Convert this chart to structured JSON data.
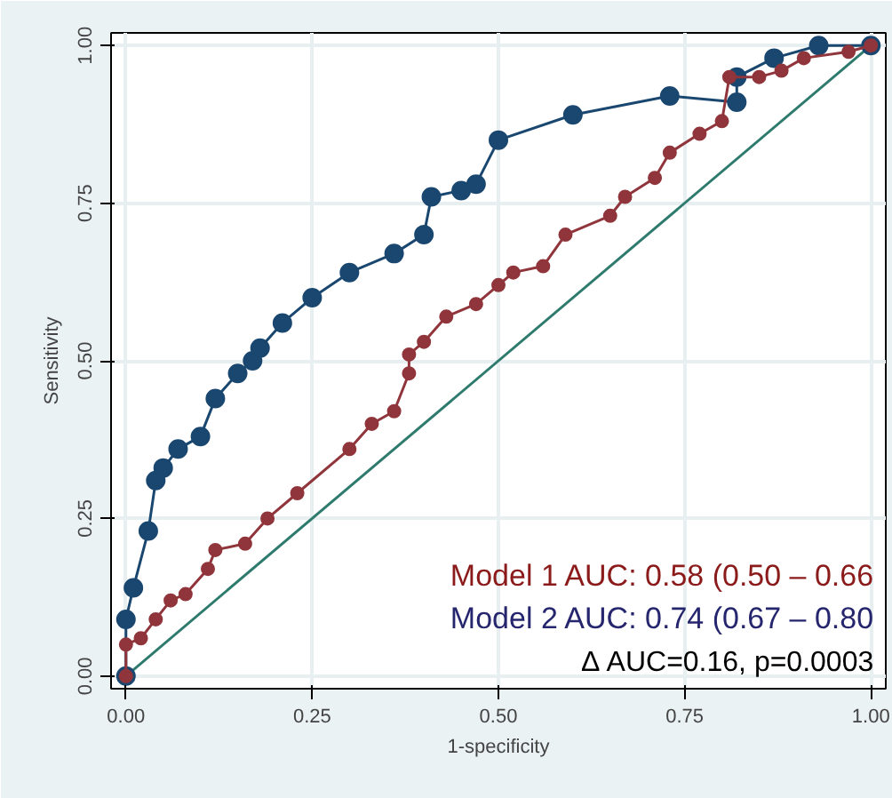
{
  "chart_data": {
    "type": "line",
    "xlabel": "1-specificity",
    "ylabel": "Sensitivity",
    "xlim": [
      -0.02,
      1.02
    ],
    "ylim": [
      -0.02,
      1.02
    ],
    "xticks": [
      {
        "value": 0,
        "label": "0.00"
      },
      {
        "value": 0.25,
        "label": "0.25"
      },
      {
        "value": 0.5,
        "label": "0.50"
      },
      {
        "value": 0.75,
        "label": "0.75"
      },
      {
        "value": 1,
        "label": "1.00"
      }
    ],
    "yticks": [
      {
        "value": 0,
        "label": "0.00"
      },
      {
        "value": 0.25,
        "label": "0.25"
      },
      {
        "value": 0.5,
        "label": "0.50"
      },
      {
        "value": 0.75,
        "label": "0.75"
      },
      {
        "value": 1,
        "label": "1.00"
      }
    ],
    "grid": true,
    "series": [
      {
        "color": "#90353b",
        "marker": "circle",
        "x": [
          0,
          0,
          0.02,
          0.04,
          0.06,
          0.08,
          0.11,
          0.12,
          0.16,
          0.19,
          0.23,
          0.3,
          0.33,
          0.36,
          0.38,
          0.38,
          0.4,
          0.43,
          0.47,
          0.5,
          0.52,
          0.56,
          0.59,
          0.65,
          0.67,
          0.71,
          0.73,
          0.77,
          0.8,
          0.81,
          0.85,
          0.88,
          0.91,
          0.97,
          1.0
        ],
        "values": [
          0,
          0.05,
          0.06,
          0.09,
          0.12,
          0.13,
          0.17,
          0.2,
          0.21,
          0.25,
          0.29,
          0.36,
          0.4,
          0.42,
          0.48,
          0.51,
          0.53,
          0.57,
          0.59,
          0.62,
          0.64,
          0.65,
          0.7,
          0.73,
          0.76,
          0.79,
          0.83,
          0.86,
          0.88,
          0.95,
          0.95,
          0.96,
          0.98,
          0.99,
          1.0
        ]
      },
      {
        "color": "#1a476f",
        "marker": "circle",
        "x": [
          0,
          0,
          0.01,
          0.03,
          0.04,
          0.05,
          0.07,
          0.1,
          0.12,
          0.15,
          0.17,
          0.18,
          0.21,
          0.25,
          0.3,
          0.36,
          0.4,
          0.41,
          0.45,
          0.47,
          0.5,
          0.6,
          0.73,
          0.82,
          0.82,
          0.87,
          0.93,
          1.0
        ],
        "values": [
          0,
          0.09,
          0.14,
          0.23,
          0.31,
          0.33,
          0.36,
          0.38,
          0.44,
          0.48,
          0.5,
          0.52,
          0.56,
          0.6,
          0.64,
          0.67,
          0.7,
          0.76,
          0.77,
          0.78,
          0.85,
          0.89,
          0.92,
          0.91,
          0.95,
          0.98,
          1.0,
          1.0
        ]
      },
      {
        "color": "#2e7b6e",
        "marker": "none",
        "x": [
          0,
          1
        ],
        "values": [
          0,
          1
        ]
      }
    ],
    "annotations": [
      "Model 1 AUC: 0.58 (0.50 – 0.66",
      "Model 2 AUC: 0.74 (0.67 – 0.80",
      "Δ AUC=0.16, p=0.0003"
    ]
  }
}
